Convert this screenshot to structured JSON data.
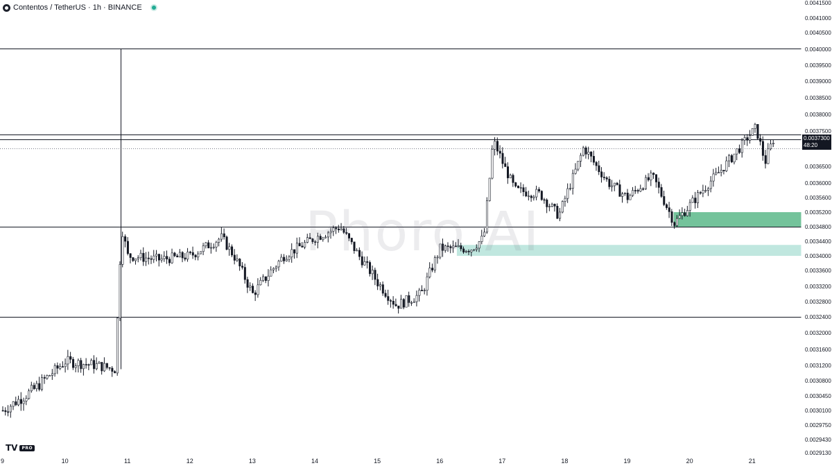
{
  "header": {
    "title": "Contentos / TetherUS · 1h · BINANCE"
  },
  "watermark": "Phoro AI",
  "logo": {
    "mark": "TV",
    "badge": "PRO"
  },
  "last_price": {
    "price": "0.0037300",
    "countdown": "48:20"
  },
  "colors": {
    "up": "#ffffff",
    "down": "#131722",
    "wick": "#131722",
    "zone_dark": "#5cb88a",
    "zone_light": "#b9e4dc"
  },
  "chart_data": {
    "type": "candlestick",
    "symbol": "Contentos / TetherUS",
    "interval": "1h",
    "exchange": "BINANCE",
    "x_axis_labels": [
      "9",
      "10",
      "11",
      "12",
      "13",
      "14",
      "15",
      "16",
      "17",
      "18",
      "19",
      "20",
      "21"
    ],
    "y_axis_labels": [
      "0.0041500",
      "0.0041000",
      "0.0040500",
      "0.0040000",
      "0.0039500",
      "0.0039000",
      "0.0038500",
      "0.0038000",
      "0.0037500",
      "0.0037000",
      "0.0036500",
      "0.0036000",
      "0.0035600",
      "0.0035200",
      "0.0034800",
      "0.0034400",
      "0.0034000",
      "0.0033600",
      "0.0033200",
      "0.0032800",
      "0.0032400",
      "0.0032000",
      "0.0031600",
      "0.0031200",
      "0.0030800",
      "0.0030450",
      "0.0030100",
      "0.0029750",
      "0.0029430",
      "0.0029130"
    ],
    "close_path": [
      {
        "day": 9.0,
        "price": 0.00301
      },
      {
        "day": 9.5,
        "price": 0.00306
      },
      {
        "day": 10.0,
        "price": 0.00313
      },
      {
        "day": 10.5,
        "price": 0.00312
      },
      {
        "day": 10.8,
        "price": 0.00311
      },
      {
        "day": 10.9,
        "price": 0.00348
      },
      {
        "day": 11.0,
        "price": 0.0034
      },
      {
        "day": 11.5,
        "price": 0.00339
      },
      {
        "day": 12.0,
        "price": 0.0034
      },
      {
        "day": 12.5,
        "price": 0.00345
      },
      {
        "day": 12.7,
        "price": 0.0034
      },
      {
        "day": 13.0,
        "price": 0.0033
      },
      {
        "day": 13.5,
        "price": 0.0034
      },
      {
        "day": 14.0,
        "price": 0.00345
      },
      {
        "day": 14.4,
        "price": 0.00348
      },
      {
        "day": 14.7,
        "price": 0.0034
      },
      {
        "day": 15.0,
        "price": 0.00333
      },
      {
        "day": 15.3,
        "price": 0.00327
      },
      {
        "day": 15.7,
        "price": 0.0033
      },
      {
        "day": 16.0,
        "price": 0.00342
      },
      {
        "day": 16.5,
        "price": 0.00342
      },
      {
        "day": 16.7,
        "price": 0.00345
      },
      {
        "day": 16.85,
        "price": 0.00372
      },
      {
        "day": 17.2,
        "price": 0.00358
      },
      {
        "day": 17.6,
        "price": 0.00357
      },
      {
        "day": 17.9,
        "price": 0.00351
      },
      {
        "day": 18.3,
        "price": 0.0037
      },
      {
        "day": 18.7,
        "price": 0.0036
      },
      {
        "day": 19.0,
        "price": 0.00356
      },
      {
        "day": 19.4,
        "price": 0.00362
      },
      {
        "day": 19.75,
        "price": 0.00349
      },
      {
        "day": 20.3,
        "price": 0.0036
      },
      {
        "day": 20.8,
        "price": 0.0037
      },
      {
        "day": 21.05,
        "price": 0.00376
      },
      {
        "day": 21.2,
        "price": 0.00366
      },
      {
        "day": 21.35,
        "price": 0.00373
      }
    ],
    "horizontal_levels": [
      0.004002,
      0.00374,
      0.003724,
      0.00348,
      0.00324
    ],
    "dotted_level": 0.003697,
    "vertical_line_day": 10.9,
    "zones": [
      {
        "from_day": 19.75,
        "top": 0.00352,
        "bottom": 0.00348,
        "style": "dark"
      },
      {
        "from_day": 16.28,
        "top": 0.00343,
        "bottom": 0.0034,
        "style": "light"
      }
    ],
    "ylim": [
      0.002913,
      0.00415
    ],
    "xlim": [
      9.0,
      21.8
    ],
    "grid": false
  }
}
